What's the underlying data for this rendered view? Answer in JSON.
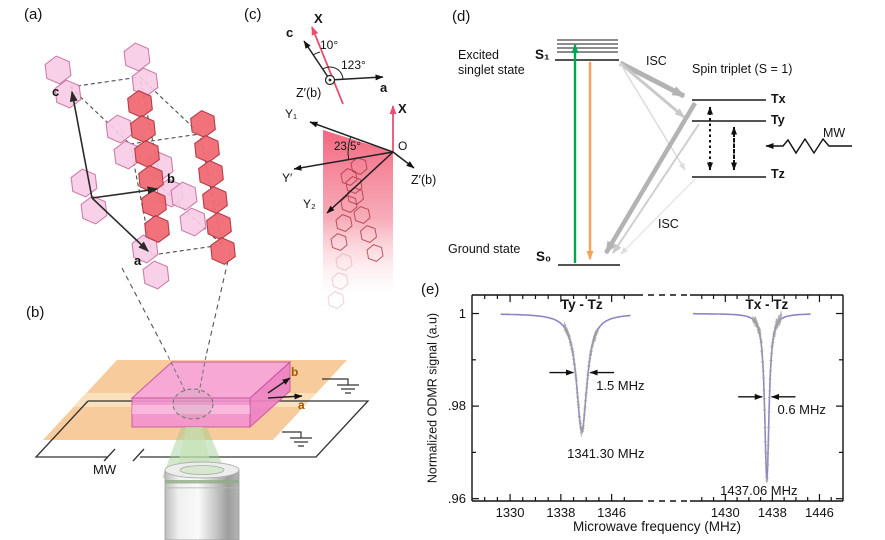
{
  "figure": {
    "panel_labels": {
      "a": "(a)",
      "b": "(b)",
      "c": "(c)",
      "d": "(d)",
      "e": "(e)"
    }
  },
  "panel_a": {
    "axis_a": "a",
    "axis_b": "b",
    "axis_c": "c"
  },
  "panel_b": {
    "axis_a": "a",
    "axis_b": "b",
    "mw_label": "MW"
  },
  "panel_c": {
    "top": {
      "x_axis": "X",
      "c_axis": "c",
      "a_axis": "a",
      "angle_c_x": "10°",
      "angle_a_c": "123°",
      "origin": "Z′(b)"
    },
    "bottom": {
      "x_axis": "X",
      "origin": "O",
      "y1_axis": "Y₁",
      "y2_axis": "Y₂",
      "yprime_axis": "Y′",
      "z_axis": "Z′(b)",
      "angle_yprime_y1": "23.5°"
    }
  },
  "panel_d": {
    "excited_label": "Excited\nsinglet state",
    "ground_label": "Ground state",
    "s1": "S₁",
    "s0": "S₀",
    "isc_top": "ISC",
    "isc_bottom": "ISC",
    "spin_triplet": "Spin triplet (S = 1)",
    "tx": "Tx",
    "ty": "Ty",
    "tz": "Tz",
    "mw": "MW"
  },
  "chart_data": {
    "type": "line",
    "title": "",
    "xlabel": "Microwave frequency (MHz)",
    "ylabel": "Normalized ODMR signal (a.u)",
    "ylim": [
      0.9595,
      1.004
    ],
    "y_ticks": [
      {
        "value": 1,
        "label": "1"
      },
      {
        "value": 0.98,
        "label": ".98"
      },
      {
        "value": 0.96,
        "label": ".96"
      }
    ],
    "y_minor_ticks": [
      0.99,
      0.97
    ],
    "axis_break": true,
    "grid": false,
    "segments": [
      {
        "xlim": [
          1324,
          1350
        ],
        "x_ticks": [
          1330,
          1338,
          1346
        ],
        "x_minor_step": 2
      },
      {
        "xlim": [
          1424,
          1450
        ],
        "x_ticks": [
          1430,
          1438,
          1446
        ],
        "x_minor_step": 2
      }
    ],
    "series": [
      {
        "title": "Ty - Tz",
        "segment": 0,
        "fit": "lorentzian",
        "center_mhz": 1341.3,
        "center_label": "1341.30 MHz",
        "linewidth_mhz": 1.5,
        "linewidth_label": "1.5 MHz",
        "fwhm_display_mhz": 2.0,
        "depth": 0.0255,
        "min_signal": 0.9745,
        "curve_range_mhz": [
          1328.5,
          1349.0
        ],
        "data_range_mhz": [
          1338.6,
          1343.8
        ],
        "noise": 0.0007
      },
      {
        "title": "Tx - Tz",
        "segment": 1,
        "fit": "lorentzian",
        "center_mhz": 1437.06,
        "center_label": "1437.06 MHz",
        "linewidth_mhz": 0.6,
        "linewidth_label": "0.6 MHz",
        "fwhm_display_mhz": 0.9,
        "depth": 0.036,
        "min_signal": 0.964,
        "curve_range_mhz": [
          1424.5,
          1444.5
        ],
        "data_range_mhz": [
          1434.7,
          1439.5
        ],
        "noise": 0.0012
      }
    ],
    "fit_color": "#9084c8",
    "data_color": "#9e9e9e"
  }
}
